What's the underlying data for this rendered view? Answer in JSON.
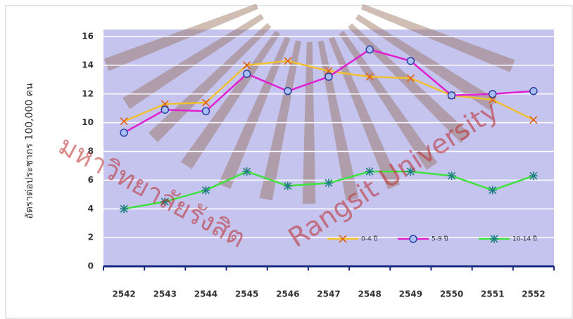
{
  "chart_data": {
    "type": "line",
    "y_label": "อัตราต่อประชากร 100,000 คน",
    "categories": [
      "2542",
      "2543",
      "2544",
      "2545",
      "2546",
      "2547",
      "2548",
      "2549",
      "2550",
      "2551",
      "2552"
    ],
    "series": [
      {
        "name": "0-4 ปี",
        "color": "#f0c030",
        "marker": "x",
        "marker_color": "#e06010",
        "values": [
          10.1,
          11.3,
          11.4,
          14.0,
          14.3,
          13.6,
          13.2,
          13.1,
          11.9,
          11.6,
          10.2
        ]
      },
      {
        "name": "5-9 ปี",
        "color": "#e020d0",
        "marker": "circle",
        "marker_color": "#3040a0",
        "values": [
          9.3,
          10.9,
          10.8,
          13.4,
          12.2,
          13.2,
          15.1,
          14.3,
          11.9,
          12.0,
          12.2
        ]
      },
      {
        "name": "10-14 ปี",
        "color": "#40e040",
        "marker": "star",
        "marker_color": "#208080",
        "values": [
          4.0,
          4.5,
          5.3,
          6.6,
          5.6,
          5.8,
          6.6,
          6.6,
          6.3,
          5.3,
          6.3
        ]
      }
    ],
    "ylim": [
      0,
      16
    ],
    "yticks": [
      0,
      2,
      4,
      6,
      8,
      10,
      12,
      14,
      16
    ],
    "grid": true,
    "legend": "lower right",
    "watermark": {
      "thai": "มหาวิทยาลัยรังสิต",
      "english": "Rangsit University"
    }
  }
}
